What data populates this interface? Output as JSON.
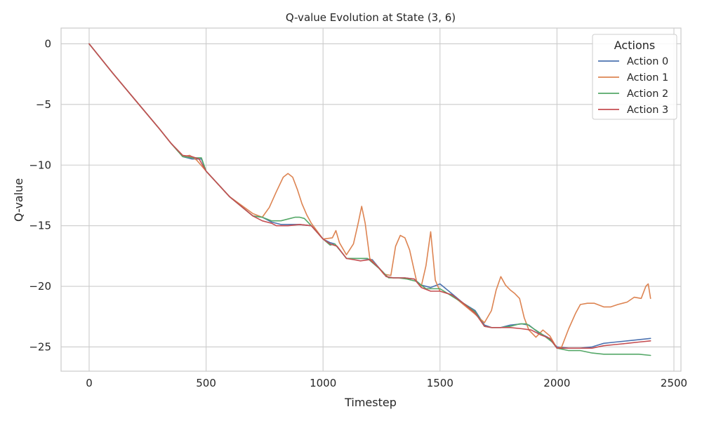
{
  "chart_data": {
    "type": "line",
    "title": "Q-value Evolution at State (3, 6)",
    "xlabel": "Timestep",
    "ylabel": "Q-value",
    "xlim": [
      -120,
      2530
    ],
    "ylim": [
      -27.0,
      1.3
    ],
    "xticks": [
      0,
      500,
      1000,
      1500,
      2000,
      2500
    ],
    "yticks": [
      0,
      -5,
      -10,
      -15,
      -20,
      -25
    ],
    "grid": true,
    "legend": {
      "title": "Actions",
      "placement": "top-right"
    },
    "series": [
      {
        "name": "Action 0",
        "color": "#4c72b0",
        "x": [
          0,
          100,
          200,
          300,
          350,
          400,
          440,
          480,
          500,
          600,
          700,
          740,
          780,
          820,
          900,
          950,
          1000,
          1030,
          1050,
          1080,
          1100,
          1130,
          1170,
          1210,
          1240,
          1270,
          1300,
          1350,
          1390,
          1420,
          1460,
          1500,
          1550,
          1600,
          1650,
          1690,
          1720,
          1760,
          1800,
          1850,
          1880,
          1920,
          1960,
          2000,
          2050,
          2100,
          2150,
          2200,
          2250,
          2300,
          2350,
          2400
        ],
        "y": [
          0,
          -2.4,
          -4.7,
          -7.0,
          -8.2,
          -9.3,
          -9.5,
          -9.5,
          -10.5,
          -12.6,
          -14.2,
          -14.3,
          -14.7,
          -14.9,
          -14.9,
          -15.0,
          -16.1,
          -16.4,
          -16.5,
          -17.2,
          -17.7,
          -17.7,
          -17.7,
          -17.8,
          -18.5,
          -19.2,
          -19.3,
          -19.3,
          -19.4,
          -19.9,
          -20.1,
          -19.8,
          -20.6,
          -21.4,
          -22.0,
          -23.2,
          -23.4,
          -23.4,
          -23.2,
          -23.1,
          -23.2,
          -23.8,
          -24.2,
          -25.0,
          -25.1,
          -25.1,
          -25.0,
          -24.7,
          -24.6,
          -24.5,
          -24.4,
          -24.3
        ]
      },
      {
        "name": "Action 1",
        "color": "#dd8452",
        "x": [
          0,
          100,
          200,
          300,
          350,
          400,
          430,
          460,
          500,
          600,
          700,
          740,
          770,
          800,
          830,
          850,
          870,
          890,
          910,
          930,
          950,
          1000,
          1040,
          1055,
          1070,
          1100,
          1130,
          1150,
          1165,
          1180,
          1200,
          1230,
          1260,
          1290,
          1310,
          1330,
          1350,
          1370,
          1400,
          1420,
          1440,
          1460,
          1470,
          1480,
          1500,
          1550,
          1600,
          1650,
          1690,
          1720,
          1740,
          1760,
          1780,
          1800,
          1820,
          1840,
          1860,
          1880,
          1910,
          1940,
          1970,
          2000,
          2020,
          2050,
          2080,
          2100,
          2130,
          2160,
          2200,
          2230,
          2260,
          2300,
          2330,
          2360,
          2380,
          2390,
          2400
        ],
        "y": [
          0,
          -2.4,
          -4.7,
          -7.0,
          -8.2,
          -9.3,
          -9.2,
          -9.6,
          -10.5,
          -12.6,
          -14.0,
          -14.3,
          -13.5,
          -12.2,
          -11.0,
          -10.7,
          -11.0,
          -12.0,
          -13.2,
          -14.1,
          -14.8,
          -16.1,
          -16.0,
          -15.4,
          -16.4,
          -17.4,
          -16.5,
          -14.8,
          -13.4,
          -14.8,
          -17.7,
          -18.3,
          -19.0,
          -19.1,
          -16.7,
          -15.8,
          -16.0,
          -17.0,
          -19.6,
          -20.0,
          -18.3,
          -15.5,
          -17.5,
          -19.5,
          -20.4,
          -20.7,
          -21.5,
          -22.3,
          -23.0,
          -22.0,
          -20.3,
          -19.2,
          -19.9,
          -20.3,
          -20.6,
          -21.0,
          -22.6,
          -23.6,
          -24.2,
          -23.6,
          -24.1,
          -25.1,
          -25.0,
          -23.5,
          -22.2,
          -21.5,
          -21.4,
          -21.4,
          -21.7,
          -21.7,
          -21.5,
          -21.3,
          -20.9,
          -21.0,
          -20.0,
          -19.8,
          -21.0
        ]
      },
      {
        "name": "Action 2",
        "color": "#55a868",
        "x": [
          0,
          100,
          200,
          300,
          350,
          400,
          440,
          480,
          500,
          600,
          700,
          740,
          780,
          820,
          860,
          880,
          900,
          920,
          950,
          1000,
          1030,
          1050,
          1080,
          1100,
          1130,
          1160,
          1190,
          1220,
          1250,
          1280,
          1320,
          1360,
          1400,
          1440,
          1480,
          1500,
          1550,
          1600,
          1650,
          1690,
          1720,
          1760,
          1800,
          1840,
          1870,
          1900,
          1940,
          1980,
          2000,
          2050,
          2100,
          2150,
          2200,
          2250,
          2300,
          2350,
          2400
        ],
        "y": [
          0,
          -2.4,
          -4.7,
          -7.0,
          -8.2,
          -9.3,
          -9.4,
          -9.4,
          -10.5,
          -12.6,
          -14.2,
          -14.3,
          -14.6,
          -14.6,
          -14.4,
          -14.3,
          -14.3,
          -14.4,
          -15.0,
          -16.1,
          -16.6,
          -16.5,
          -17.2,
          -17.7,
          -17.7,
          -17.7,
          -17.7,
          -18.2,
          -18.7,
          -19.3,
          -19.3,
          -19.4,
          -19.6,
          -20.2,
          -20.2,
          -20.2,
          -20.8,
          -21.4,
          -22.1,
          -23.3,
          -23.4,
          -23.4,
          -23.3,
          -23.1,
          -23.1,
          -23.5,
          -24.0,
          -24.6,
          -25.1,
          -25.3,
          -25.3,
          -25.5,
          -25.6,
          -25.6,
          -25.6,
          -25.6,
          -25.7
        ]
      },
      {
        "name": "Action 3",
        "color": "#c44e52",
        "x": [
          0,
          100,
          200,
          300,
          350,
          400,
          440,
          470,
          500,
          600,
          700,
          740,
          780,
          800,
          850,
          900,
          950,
          1000,
          1030,
          1060,
          1100,
          1130,
          1160,
          1200,
          1240,
          1270,
          1300,
          1350,
          1390,
          1420,
          1460,
          1500,
          1550,
          1600,
          1650,
          1690,
          1720,
          1760,
          1800,
          1850,
          1890,
          1930,
          1970,
          2000,
          2050,
          2100,
          2150,
          2200,
          2250,
          2300,
          2350,
          2400
        ],
        "y": [
          0,
          -2.4,
          -4.7,
          -7.0,
          -8.2,
          -9.2,
          -9.3,
          -9.5,
          -10.5,
          -12.6,
          -14.2,
          -14.6,
          -14.8,
          -15.0,
          -15.0,
          -14.9,
          -15.0,
          -16.1,
          -16.5,
          -16.7,
          -17.7,
          -17.8,
          -17.9,
          -17.8,
          -18.5,
          -19.2,
          -19.3,
          -19.3,
          -19.4,
          -20.1,
          -20.4,
          -20.4,
          -20.7,
          -21.4,
          -22.2,
          -23.3,
          -23.4,
          -23.4,
          -23.4,
          -23.5,
          -23.6,
          -24.0,
          -24.3,
          -25.1,
          -25.1,
          -25.1,
          -25.1,
          -24.9,
          -24.8,
          -24.7,
          -24.6,
          -24.5
        ]
      }
    ]
  }
}
